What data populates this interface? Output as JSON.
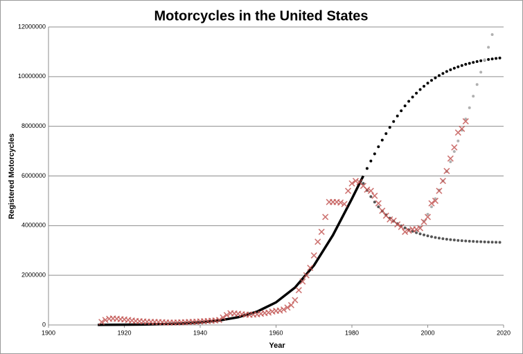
{
  "chart_data": {
    "type": "scatter",
    "title": "Motorcycles in the United States",
    "x_label": "Year",
    "y_label": "Registered Motorcycles",
    "xlim": [
      1900,
      2020
    ],
    "xticks": [
      1900,
      1920,
      1940,
      1960,
      1980,
      2000,
      2020
    ],
    "ylim": [
      0,
      12000000
    ],
    "yticks": [
      0,
      2000000,
      4000000,
      6000000,
      8000000,
      10000000,
      12000000
    ],
    "grid": true,
    "series": [
      {
        "marker": "line",
        "color": "#000000",
        "x": [
          1913,
          1915,
          1920,
          1925,
          1930,
          1935,
          1940,
          1945,
          1950,
          1955,
          1960,
          1965,
          1970,
          1975,
          1980,
          1983
        ],
        "values": [
          5000,
          6200,
          10800,
          19000,
          33400,
          58600,
          102800,
          179600,
          311900,
          537000,
          910600,
          1507600,
          2397700,
          3616500,
          5081600,
          6002000
        ]
      },
      {
        "marker": "dot",
        "color": "#000000",
        "x": [
          1984,
          1985,
          1986,
          1987,
          1988,
          1989,
          1990,
          1991,
          1992,
          1993,
          1994,
          1995,
          1996,
          1997,
          1998,
          1999,
          2000,
          2001,
          2002,
          2003,
          2004,
          2005,
          2006,
          2007,
          2008,
          2009,
          2010,
          2011,
          2012,
          2013,
          2014,
          2015,
          2016,
          2017,
          2018,
          2019
        ],
        "values": [
          6304000,
          6601000,
          6892000,
          7175000,
          7445000,
          7706000,
          7956000,
          8192000,
          8416000,
          8625000,
          8822000,
          9008000,
          9176000,
          9334000,
          9479000,
          9613000,
          9737000,
          9848000,
          9951000,
          10044000,
          10129000,
          10207000,
          10276000,
          10340000,
          10397000,
          10449000,
          10495000,
          10536000,
          10574000,
          10608000,
          10638000,
          10666000,
          10690000,
          10713000,
          10733000,
          10750000
        ]
      },
      {
        "marker": "dot",
        "color": "#555555",
        "x": [
          1983,
          1984,
          1985,
          1986,
          1987,
          1988,
          1989,
          1990,
          1991,
          1992,
          1993,
          1994,
          1995,
          1996,
          1997,
          1998,
          1999,
          2000,
          2001,
          2002,
          2003,
          2004,
          2005,
          2006,
          2007,
          2008,
          2009,
          2010,
          2011,
          2012,
          2013,
          2014,
          2015,
          2016,
          2017,
          2018,
          2019
        ],
        "values": [
          5700000,
          5418000,
          5169000,
          4950000,
          4756000,
          4585000,
          4434000,
          4301000,
          4183000,
          4079000,
          3988000,
          3907000,
          3835000,
          3773000,
          3717000,
          3668000,
          3625000,
          3587000,
          3553000,
          3523000,
          3497000,
          3474000,
          3453000,
          3435000,
          3420000,
          3405000,
          3393000,
          3382000,
          3372000,
          3364000,
          3356000,
          3350000,
          3344000,
          3339000,
          3334000,
          3330000,
          3327000
        ]
      },
      {
        "marker": "dot",
        "color": "#b0b0b0",
        "x": [
          1997,
          1998,
          1999,
          2000,
          2001,
          2002,
          2003,
          2004,
          2005,
          2006,
          2007,
          2008,
          2009,
          2010,
          2011,
          2012,
          2013,
          2014,
          2015,
          2016,
          2017
        ],
        "values": [
          3800000,
          3956000,
          4187000,
          4458000,
          4759000,
          5085000,
          5432000,
          5797000,
          6176000,
          6571000,
          6986000,
          7408000,
          7840000,
          8293000,
          8745000,
          9213000,
          9681000,
          10180000,
          10680000,
          11181000,
          11694000
        ]
      },
      {
        "marker": "x",
        "color": "#c0504d",
        "x": [
          1914,
          1915,
          1916,
          1917,
          1918,
          1919,
          1920,
          1921,
          1922,
          1923,
          1924,
          1925,
          1926,
          1927,
          1928,
          1929,
          1930,
          1931,
          1932,
          1933,
          1934,
          1935,
          1936,
          1937,
          1938,
          1939,
          1940,
          1941,
          1942,
          1943,
          1944,
          1945,
          1946,
          1947,
          1948,
          1949,
          1950,
          1951,
          1952,
          1953,
          1954,
          1955,
          1956,
          1957,
          1958,
          1959,
          1960,
          1961,
          1962,
          1963,
          1964,
          1965,
          1966,
          1967,
          1968,
          1969,
          1970,
          1971,
          1972,
          1973,
          1974,
          1975,
          1976,
          1977,
          1978,
          1979,
          1980,
          1981,
          1982,
          1983,
          1984,
          1985,
          1986,
          1987,
          1988,
          1989,
          1990,
          1991,
          1992,
          1993,
          1994,
          1995,
          1996,
          1997,
          1998,
          1999,
          2000,
          2001,
          2002,
          2003,
          2004,
          2005,
          2006,
          2007,
          2008,
          2009,
          2010
        ],
        "values": [
          120000,
          200000,
          250000,
          260000,
          250000,
          230000,
          220000,
          200000,
          180000,
          160000,
          150000,
          140000,
          130000,
          125000,
          120000,
          115000,
          110000,
          100000,
          95000,
          95000,
          100000,
          105000,
          110000,
          120000,
          125000,
          130000,
          140000,
          150000,
          160000,
          170000,
          180000,
          200000,
          300000,
          400000,
          470000,
          460000,
          450000,
          430000,
          420000,
          410000,
          420000,
          430000,
          450000,
          480000,
          500000,
          540000,
          570000,
          580000,
          620000,
          700000,
          800000,
          1000000,
          1400000,
          1750000,
          2000000,
          2300000,
          2800000,
          3350000,
          3750000,
          4350000,
          4950000,
          4950000,
          4950000,
          4930000,
          4870000,
          5400000,
          5700000,
          5800000,
          5750000,
          5600000,
          5450000,
          5400000,
          5200000,
          4900000,
          4600000,
          4400000,
          4250000,
          4200000,
          4050000,
          3950000,
          3750000,
          3800000,
          3850000,
          3850000,
          3900000,
          4150000,
          4350000,
          4900000,
          5000000,
          5400000,
          5800000,
          6200000,
          6700000,
          7150000,
          7750000,
          7900000,
          8200000
        ]
      }
    ]
  }
}
